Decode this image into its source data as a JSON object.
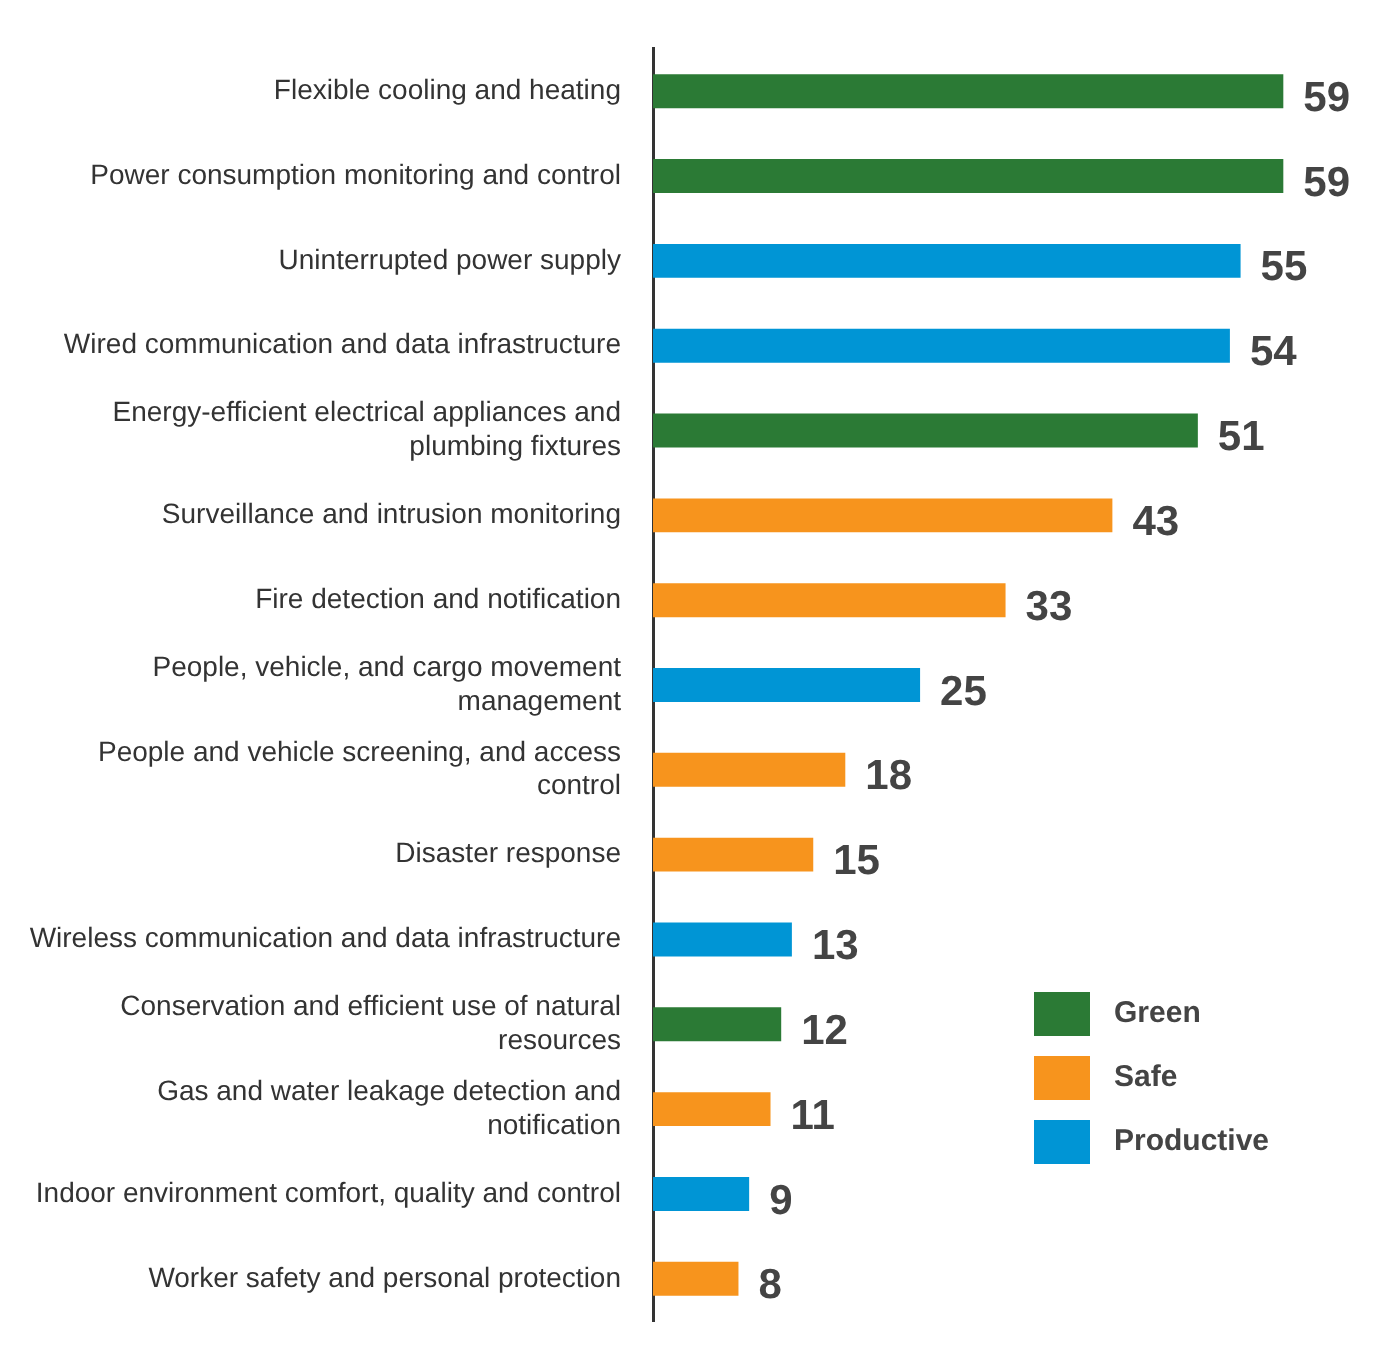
{
  "chart_data": {
    "type": "bar",
    "orientation": "horizontal",
    "data_labels": true,
    "legend": "bottom right",
    "categories": [
      "Flexible cooling and heating",
      "Power consumption monitoring and control",
      "Uninterrupted power supply",
      "Wired communication and data infrastructure",
      "Energy-efficient electrical appliances and plumbing fixtures",
      "Surveillance and intrusion monitoring",
      "Fire detection and notification",
      "People, vehicle, and cargo movement management",
      "People and vehicle screening, and access control",
      "Disaster response",
      "Wireless communication and data infrastructure",
      "Conservation and efficient use of natural resources",
      "Gas and water leakage detection and notification",
      "Indoor environment comfort, quality and control",
      "Worker safety and personal protection"
    ],
    "series": [
      {
        "name": "Green",
        "color": "#2b7a35",
        "values": [
          59,
          59,
          null,
          null,
          51,
          null,
          null,
          null,
          null,
          null,
          null,
          12,
          null,
          null,
          null
        ]
      },
      {
        "name": "Safe",
        "color": "#f7941d",
        "values": [
          null,
          null,
          null,
          null,
          null,
          43,
          33,
          null,
          18,
          15,
          null,
          null,
          11,
          null,
          8
        ]
      },
      {
        "name": "Productive",
        "color": "#0095d5",
        "values": [
          null,
          null,
          55,
          54,
          null,
          null,
          null,
          25,
          null,
          null,
          13,
          null,
          null,
          9,
          null
        ]
      }
    ]
  }
}
